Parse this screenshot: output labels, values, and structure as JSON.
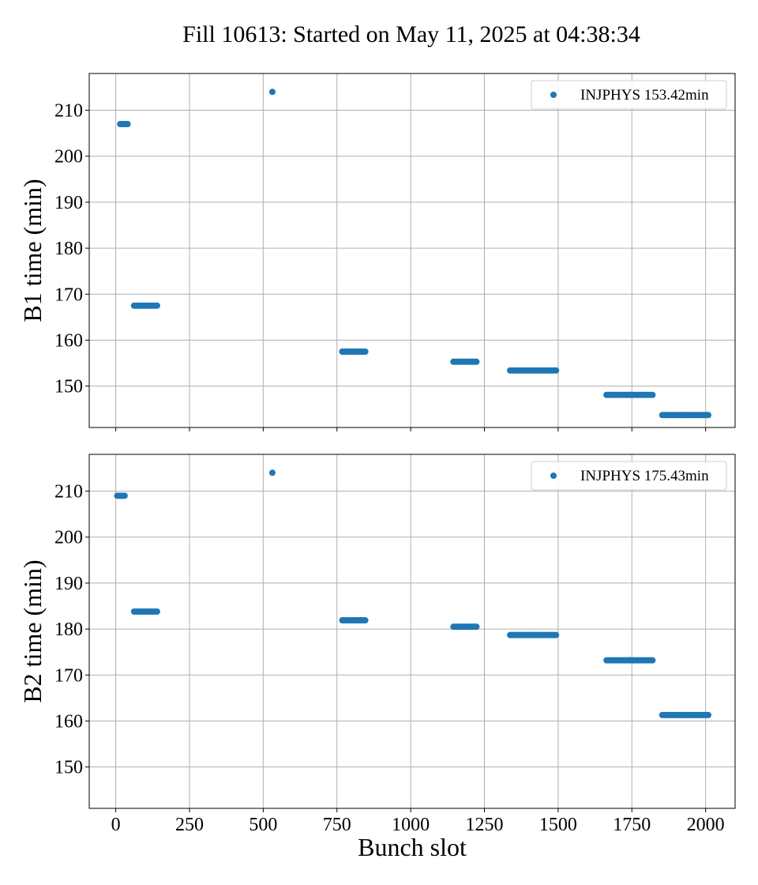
{
  "figure": {
    "title": "Fill 10613: Started on May 11, 2025 at 04:38:34",
    "xlabel": "Bunch slot"
  },
  "colors": {
    "series": "#1f77b4",
    "grid": "#b0b0b0",
    "axes": "#000000",
    "legend_border": "#cccccc"
  },
  "chart_data": [
    {
      "type": "scatter",
      "ylabel": "B1 time (min)",
      "legend": "INJPHYS 153.42min",
      "legend_position": "top-right",
      "grid": true,
      "xlim": [
        -90,
        2100
      ],
      "ylim": [
        141,
        218
      ],
      "xticks": [
        0,
        250,
        500,
        750,
        1000,
        1250,
        1500,
        1750,
        2000
      ],
      "yticks": [
        150,
        160,
        170,
        180,
        190,
        200,
        210
      ],
      "show_xtick_labels": false,
      "series": [
        {
          "name": "INJPHYS 153.42min",
          "segments": [
            {
              "x_start": 15,
              "x_end": 40,
              "y": 207
            },
            {
              "x_start": 531,
              "x_end": 531,
              "y": 214
            },
            {
              "x_start": 62,
              "x_end": 140,
              "y": 167.5
            },
            {
              "x_start": 768,
              "x_end": 846,
              "y": 157.5
            },
            {
              "x_start": 1145,
              "x_end": 1223,
              "y": 155.3
            },
            {
              "x_start": 1337,
              "x_end": 1415,
              "y": 153.4
            },
            {
              "x_start": 1415,
              "x_end": 1493,
              "y": 153.4
            },
            {
              "x_start": 1664,
              "x_end": 1742,
              "y": 148.1
            },
            {
              "x_start": 1742,
              "x_end": 1820,
              "y": 148.1
            },
            {
              "x_start": 1853,
              "x_end": 1931,
              "y": 143.7
            },
            {
              "x_start": 1931,
              "x_end": 2009,
              "y": 143.7
            }
          ]
        }
      ]
    },
    {
      "type": "scatter",
      "ylabel": "B2 time (min)",
      "legend": "INJPHYS 175.43min",
      "legend_position": "top-right",
      "grid": true,
      "xlim": [
        -90,
        2100
      ],
      "ylim": [
        141,
        218
      ],
      "xticks": [
        0,
        250,
        500,
        750,
        1000,
        1250,
        1500,
        1750,
        2000
      ],
      "yticks": [
        150,
        160,
        170,
        180,
        190,
        200,
        210
      ],
      "show_xtick_labels": true,
      "series": [
        {
          "name": "INJPHYS 175.43min",
          "segments": [
            {
              "x_start": 5,
              "x_end": 30,
              "y": 209
            },
            {
              "x_start": 531,
              "x_end": 531,
              "y": 214
            },
            {
              "x_start": 62,
              "x_end": 140,
              "y": 183.8
            },
            {
              "x_start": 768,
              "x_end": 846,
              "y": 181.9
            },
            {
              "x_start": 1145,
              "x_end": 1223,
              "y": 180.5
            },
            {
              "x_start": 1337,
              "x_end": 1415,
              "y": 178.7
            },
            {
              "x_start": 1415,
              "x_end": 1493,
              "y": 178.7
            },
            {
              "x_start": 1664,
              "x_end": 1742,
              "y": 173.2
            },
            {
              "x_start": 1742,
              "x_end": 1820,
              "y": 173.2
            },
            {
              "x_start": 1853,
              "x_end": 1931,
              "y": 161.3
            },
            {
              "x_start": 1931,
              "x_end": 2009,
              "y": 161.3
            }
          ]
        }
      ]
    }
  ]
}
